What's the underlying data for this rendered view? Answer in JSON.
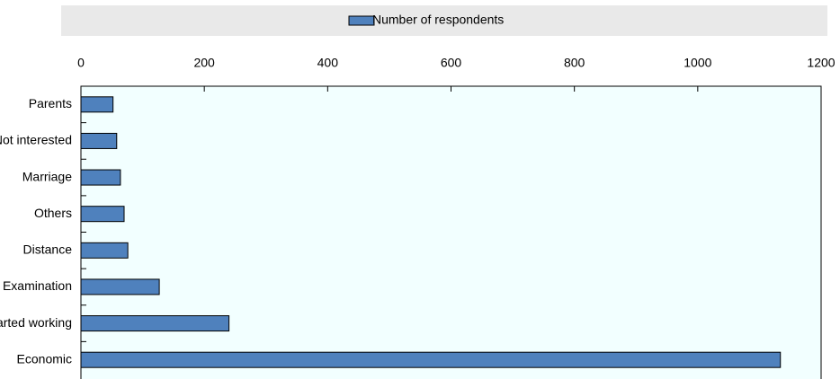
{
  "chart_data": {
    "type": "hbar",
    "legend": "Number of respondents",
    "series": [
      {
        "name": "Number of respondents",
        "color": "#4f81bd",
        "values": [
          52,
          58,
          64,
          70,
          76,
          127,
          240,
          1134
        ]
      }
    ],
    "categories": [
      "Parents",
      "Not interested",
      "Marriage",
      "Others",
      "Distance",
      "Examination",
      "Started working",
      "Economic"
    ],
    "xlim": [
      0,
      1200
    ],
    "xticks": [
      0,
      200,
      400,
      600,
      800,
      1000,
      1200
    ],
    "legend_position": "top"
  }
}
